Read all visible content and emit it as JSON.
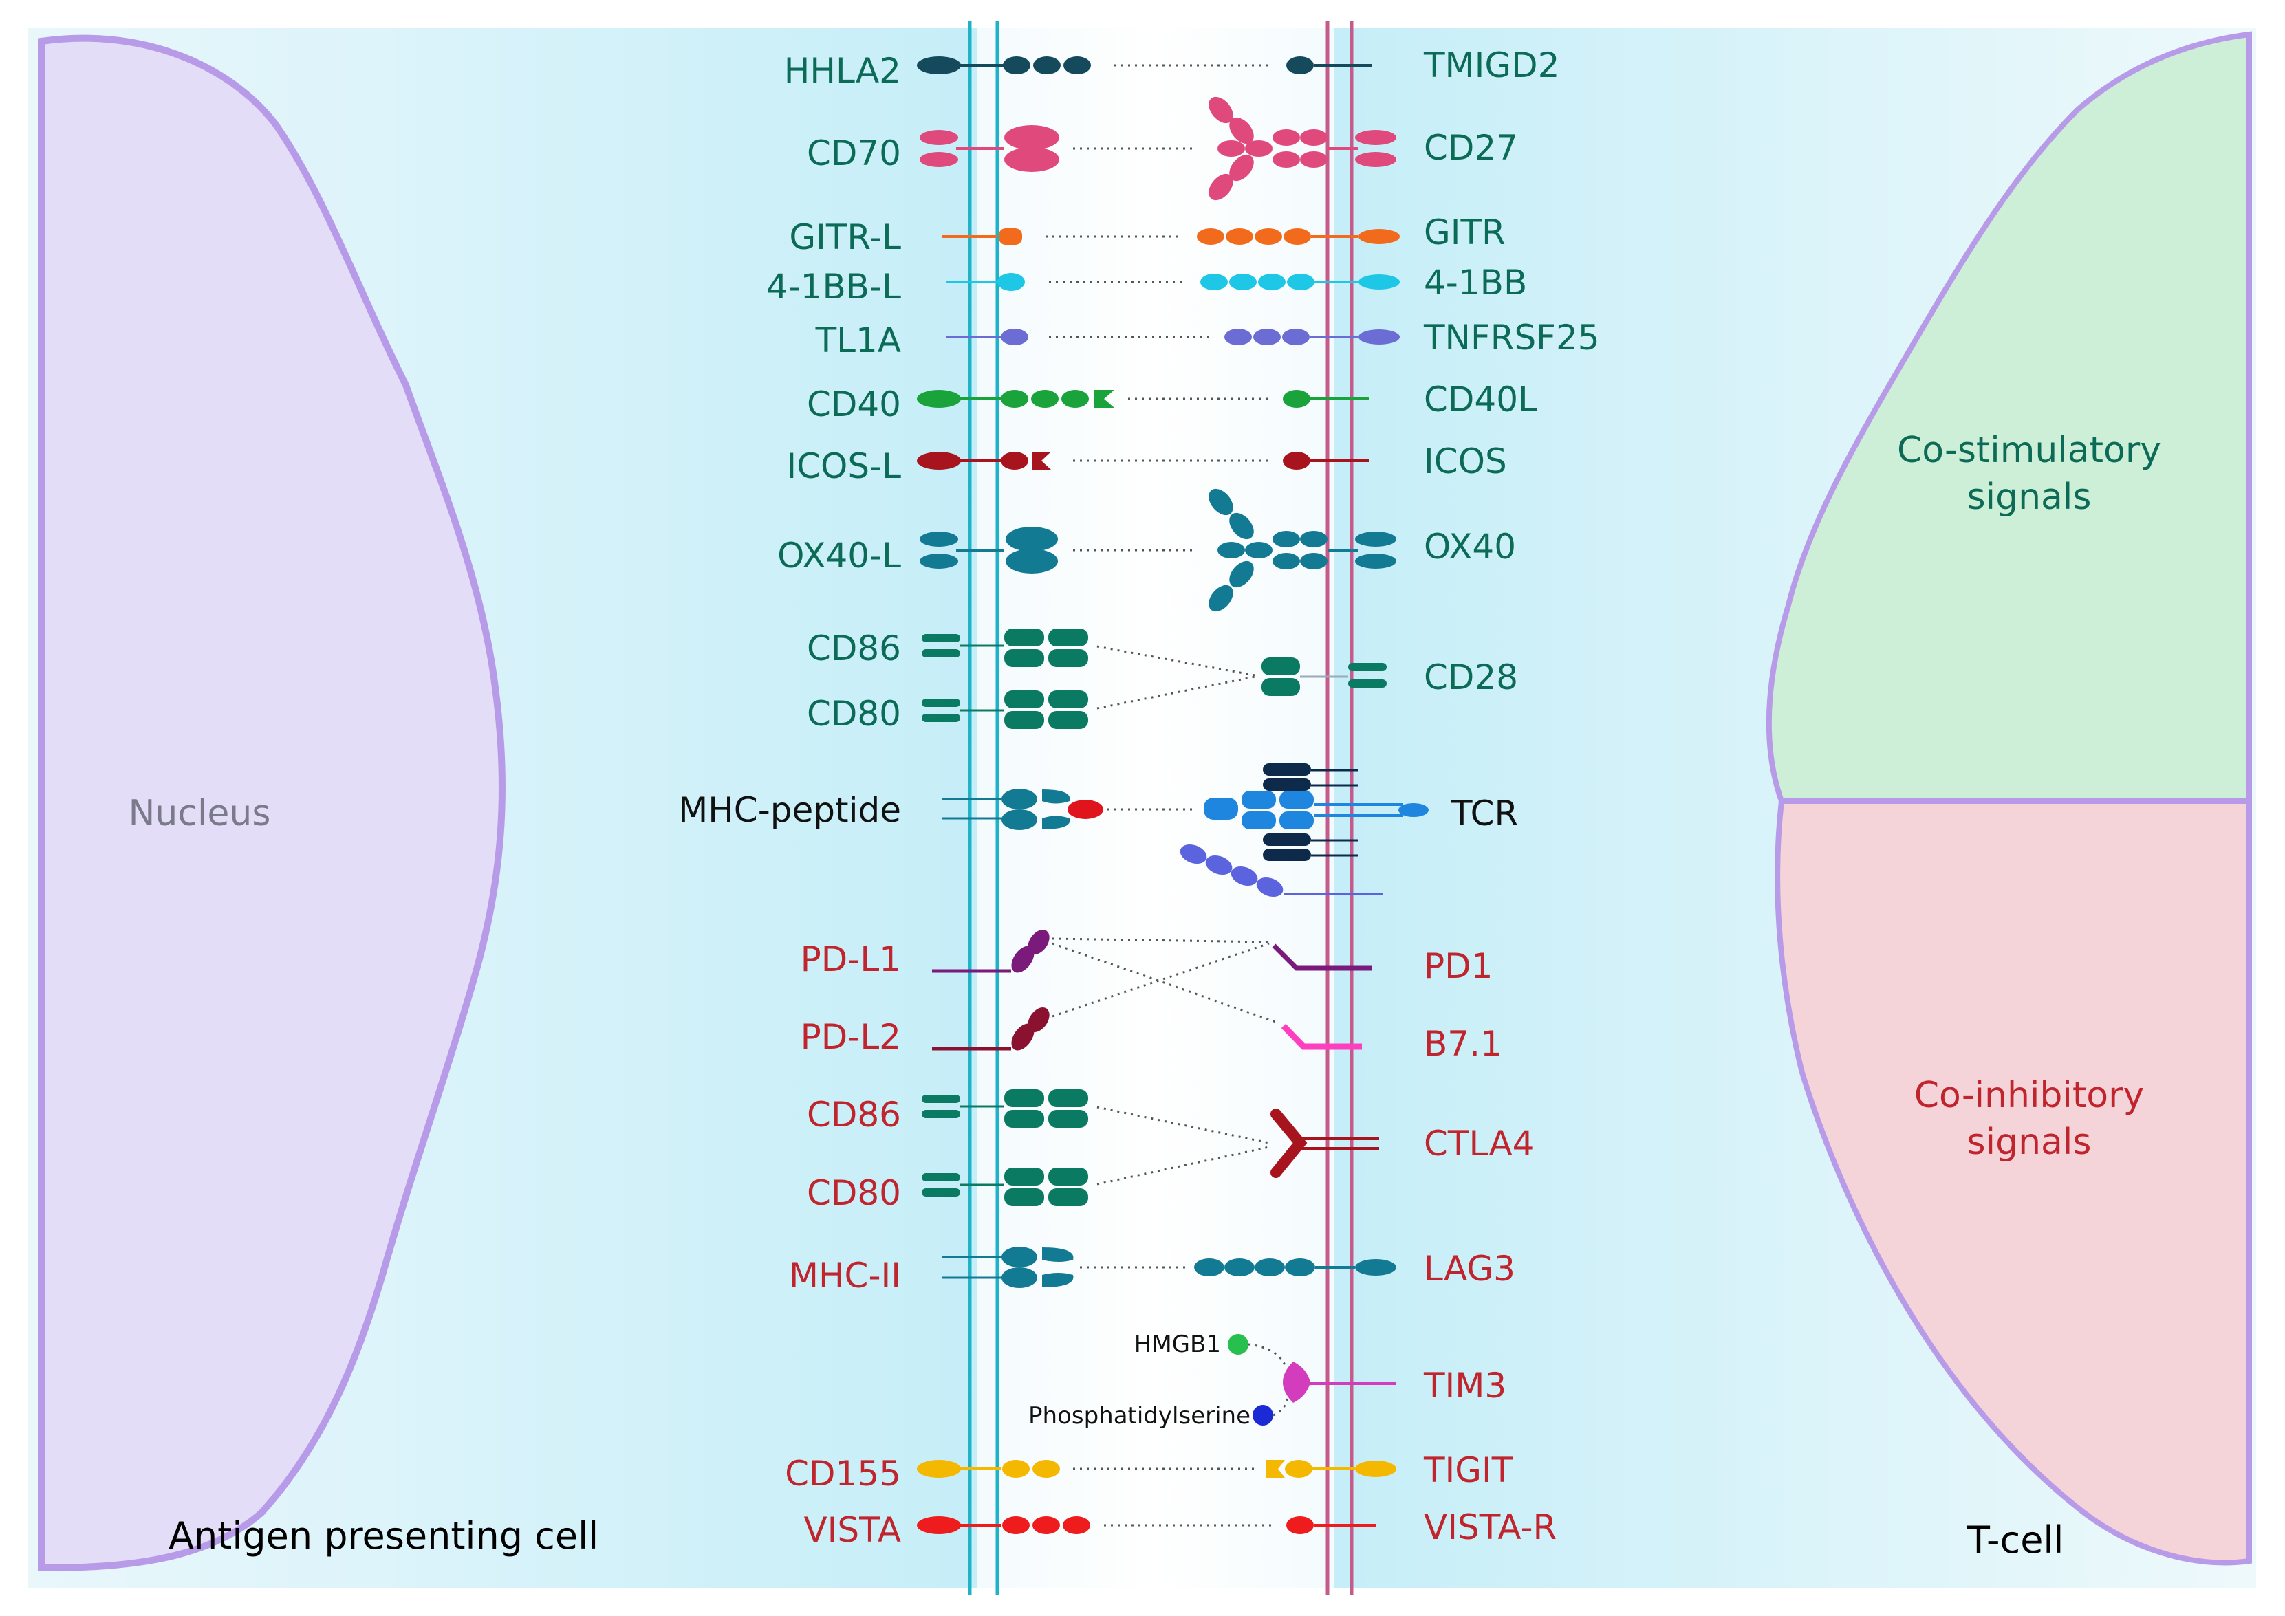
{
  "cells": {
    "apc_label": "Antigen presenting cell",
    "tcell_label": "T-cell",
    "nucleus_label": "Nucleus"
  },
  "panels": {
    "costim_line1": "Co-stimulatory",
    "costim_line2": "signals",
    "coinhib_line1": "Co-inhibitory",
    "coinhib_line2": "signals"
  },
  "colors": {
    "stimulatory_text": "#0b6b57",
    "inhibitory_text": "#c0252d",
    "costim_panel": "#cdeed7",
    "coinhib_panel": "#f4d3d9",
    "cell_outline": "#b89be8"
  },
  "pairs": [
    {
      "left": "HHLA2",
      "right": "TMIGD2"
    },
    {
      "left": "CD70",
      "right": "CD27"
    },
    {
      "left": "GITR-L",
      "right": "GITR"
    },
    {
      "left": "4-1BB-L",
      "right": "4-1BB"
    },
    {
      "left": "TL1A",
      "right": "TNFRSF25"
    },
    {
      "left": "CD40",
      "right": "CD40L"
    },
    {
      "left": "ICOS-L",
      "right": "ICOS"
    },
    {
      "left": "OX40-L",
      "right": "OX40"
    },
    {
      "left": "CD86",
      "right": ""
    },
    {
      "left": "CD80",
      "right": "CD28"
    },
    {
      "left": "MHC-peptide",
      "right": "TCR"
    },
    {
      "left": "PD-L1",
      "right": "PD1"
    },
    {
      "left": "PD-L2",
      "right": "B7.1"
    },
    {
      "left": "CD86",
      "right": "CTLA4"
    },
    {
      "left": "CD80",
      "right": ""
    },
    {
      "left": "MHC-II",
      "right": "LAG3"
    },
    {
      "left": "",
      "right": "TIM3"
    },
    {
      "left": "CD155",
      "right": "TIGIT"
    },
    {
      "left": "VISTA",
      "right": "VISTA-R"
    }
  ],
  "ligands": {
    "hmgb1": "HMGB1",
    "phosphatidylserine": "Phosphatidylserine"
  }
}
